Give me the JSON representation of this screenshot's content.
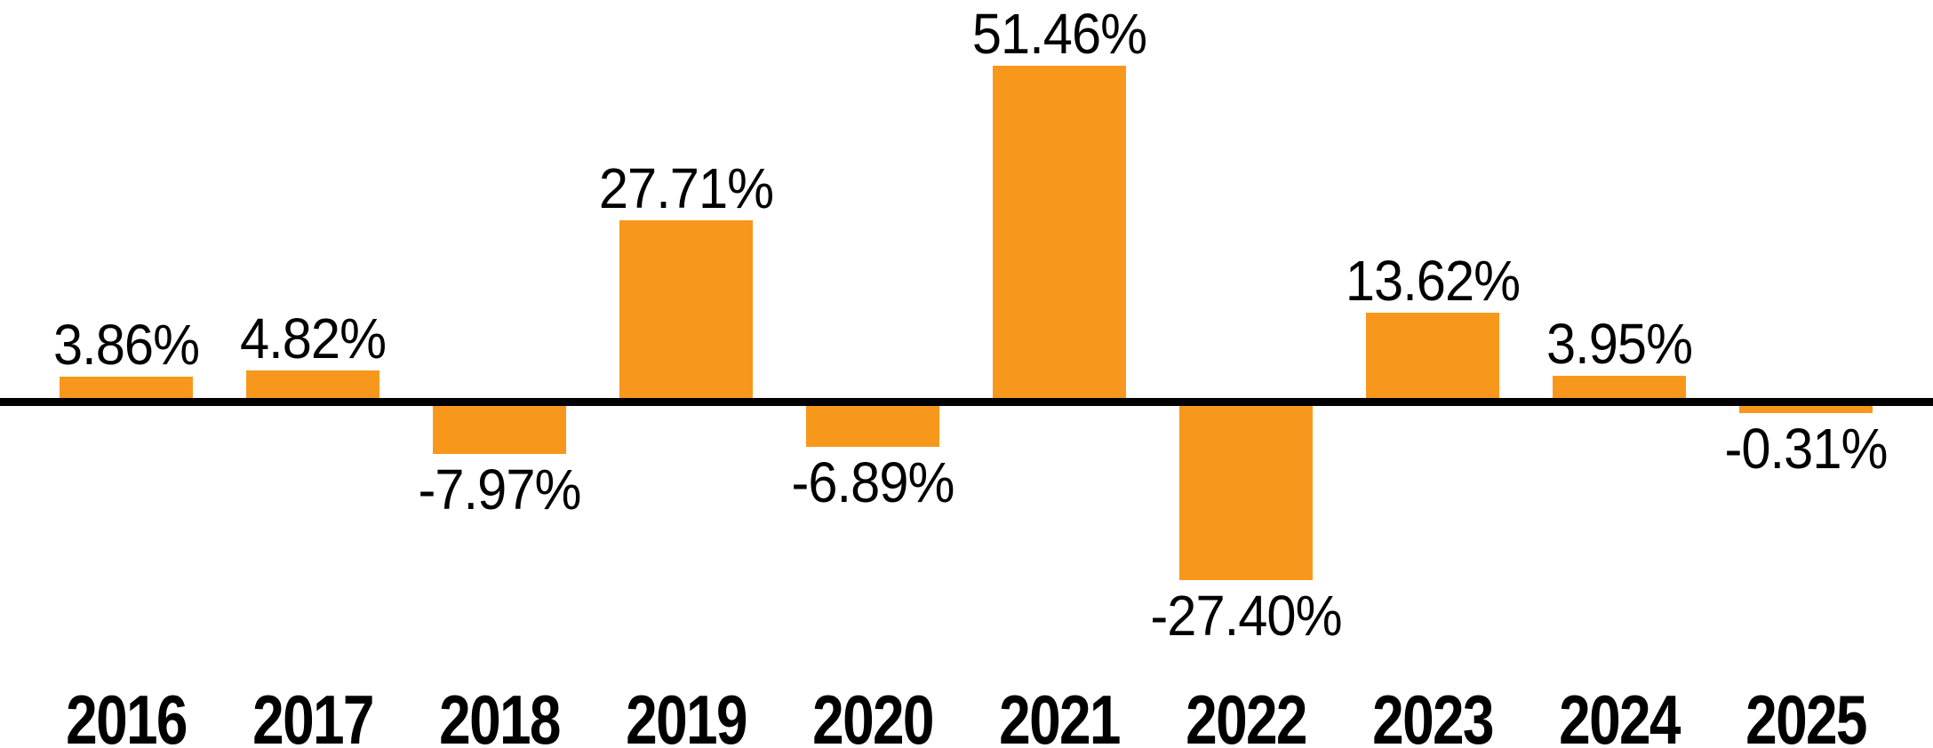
{
  "chart_data": {
    "type": "bar",
    "title": "",
    "xlabel": "",
    "ylabel": "",
    "categories": [
      "2016",
      "2017",
      "2018",
      "2019",
      "2020",
      "2021",
      "2022",
      "2023",
      "2024",
      "2025"
    ],
    "values": [
      3.86,
      4.82,
      -7.97,
      27.71,
      -6.89,
      51.46,
      -27.4,
      13.62,
      3.95,
      -0.31
    ],
    "value_labels": [
      "3.86%",
      "4.82%",
      "-7.97%",
      "27.71%",
      "-6.89%",
      "51.46%",
      "-27.40%",
      "13.62%",
      "3.95%",
      "-0.31%"
    ],
    "baseline": 0,
    "ylim": [
      -27.4,
      51.46
    ],
    "grid": false,
    "legend": false,
    "bar_color": "#F7981D",
    "axis_color": "#000000",
    "label_color": "#000000"
  }
}
